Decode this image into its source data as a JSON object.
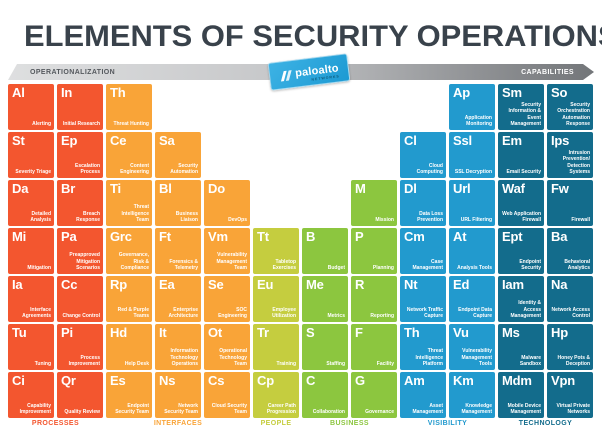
{
  "title": "ELEMENTS OF SECURITY OPERATIONS",
  "header_bar": {
    "left_label": "OPERATIONALIZATION",
    "right_label": "CAPABILITIES"
  },
  "logo": {
    "brand": "paloalto",
    "sub": "NETWORKS",
    "badge_color": "#29a9e0"
  },
  "categories": [
    {
      "id": "processes",
      "label": "PROCESSES",
      "color": "#f3562f",
      "col_start": 1,
      "col_span": 2
    },
    {
      "id": "interfaces",
      "label": "INTERFACES",
      "color": "#f9a438",
      "col_start": 3,
      "col_span": 3
    },
    {
      "id": "people",
      "label": "PEOPLE",
      "color": "#c5cd3f",
      "col_start": 6,
      "col_span": 1
    },
    {
      "id": "business",
      "label": "BUSINESS",
      "color": "#8cc63f",
      "col_start": 7,
      "col_span": 2
    },
    {
      "id": "visibility",
      "label": "VISIBILITY",
      "color": "#229ace",
      "col_start": 9,
      "col_span": 2
    },
    {
      "id": "technology",
      "label": "TECHNOLOGY",
      "color": "#136c8c",
      "col_start": 11,
      "col_span": 2
    }
  ],
  "elements": [
    {
      "symbol": "Al",
      "name": "Alerting",
      "row": 1,
      "col": 1,
      "category": "processes"
    },
    {
      "symbol": "In",
      "name": "Initial Research",
      "row": 1,
      "col": 2,
      "category": "processes"
    },
    {
      "symbol": "Th",
      "name": "Threat Hunting",
      "row": 1,
      "col": 3,
      "category": "interfaces"
    },
    {
      "symbol": "Ap",
      "name": "Application Monitoring",
      "row": 1,
      "col": 10,
      "category": "visibility"
    },
    {
      "symbol": "Sm",
      "name": "Security Information & Event Management",
      "row": 1,
      "col": 11,
      "category": "technology"
    },
    {
      "symbol": "So",
      "name": "Security Orchestration Automation Response",
      "row": 1,
      "col": 12,
      "category": "technology"
    },
    {
      "symbol": "St",
      "name": "Severity Triage",
      "row": 2,
      "col": 1,
      "category": "processes"
    },
    {
      "symbol": "Ep",
      "name": "Escalation Process",
      "row": 2,
      "col": 2,
      "category": "processes"
    },
    {
      "symbol": "Ce",
      "name": "Content Engineering",
      "row": 2,
      "col": 3,
      "category": "interfaces"
    },
    {
      "symbol": "Sa",
      "name": "Security Automation",
      "row": 2,
      "col": 4,
      "category": "interfaces"
    },
    {
      "symbol": "Cl",
      "name": "Cloud Computing",
      "row": 2,
      "col": 9,
      "category": "visibility"
    },
    {
      "symbol": "Ssl",
      "name": "SSL Decryption",
      "row": 2,
      "col": 10,
      "category": "visibility"
    },
    {
      "symbol": "Em",
      "name": "Email Security",
      "row": 2,
      "col": 11,
      "category": "technology"
    },
    {
      "symbol": "Ips",
      "name": "Intrusion Prevention/ Detection Systems",
      "row": 2,
      "col": 12,
      "category": "technology"
    },
    {
      "symbol": "Da",
      "name": "Detailed Analysis",
      "row": 3,
      "col": 1,
      "category": "processes"
    },
    {
      "symbol": "Br",
      "name": "Breach Response",
      "row": 3,
      "col": 2,
      "category": "processes"
    },
    {
      "symbol": "Ti",
      "name": "Threat Intelligence Team",
      "row": 3,
      "col": 3,
      "category": "interfaces"
    },
    {
      "symbol": "Bl",
      "name": "Business Liaison",
      "row": 3,
      "col": 4,
      "category": "interfaces"
    },
    {
      "symbol": "Do",
      "name": "DevOps",
      "row": 3,
      "col": 5,
      "category": "interfaces"
    },
    {
      "symbol": "M",
      "name": "Mission",
      "row": 3,
      "col": 8,
      "category": "business"
    },
    {
      "symbol": "Dl",
      "name": "Data Loss Prevention",
      "row": 3,
      "col": 9,
      "category": "visibility"
    },
    {
      "symbol": "Url",
      "name": "URL Filtering",
      "row": 3,
      "col": 10,
      "category": "visibility"
    },
    {
      "symbol": "Waf",
      "name": "Web Application Firewall",
      "row": 3,
      "col": 11,
      "category": "technology"
    },
    {
      "symbol": "Fw",
      "name": "Firewall",
      "row": 3,
      "col": 12,
      "category": "technology"
    },
    {
      "symbol": "Mi",
      "name": "Mitigation",
      "row": 4,
      "col": 1,
      "category": "processes"
    },
    {
      "symbol": "Pa",
      "name": "Preapproved Mitigation Scenarios",
      "row": 4,
      "col": 2,
      "category": "processes"
    },
    {
      "symbol": "Grc",
      "name": "Governance, Risk & Compliance",
      "row": 4,
      "col": 3,
      "category": "interfaces"
    },
    {
      "symbol": "Ft",
      "name": "Forensics & Telemetry",
      "row": 4,
      "col": 4,
      "category": "interfaces"
    },
    {
      "symbol": "Vm",
      "name": "Vulnerability Management Team",
      "row": 4,
      "col": 5,
      "category": "interfaces"
    },
    {
      "symbol": "Tt",
      "name": "Tabletop Exercises",
      "row": 4,
      "col": 6,
      "category": "people"
    },
    {
      "symbol": "B",
      "name": "Budget",
      "row": 4,
      "col": 7,
      "category": "business"
    },
    {
      "symbol": "P",
      "name": "Planning",
      "row": 4,
      "col": 8,
      "category": "business"
    },
    {
      "symbol": "Cm",
      "name": "Case Management",
      "row": 4,
      "col": 9,
      "category": "visibility"
    },
    {
      "symbol": "At",
      "name": "Analysis Tools",
      "row": 4,
      "col": 10,
      "category": "visibility"
    },
    {
      "symbol": "Ept",
      "name": "Endpoint Security",
      "row": 4,
      "col": 11,
      "category": "technology"
    },
    {
      "symbol": "Ba",
      "name": "Behavioral Analytics",
      "row": 4,
      "col": 12,
      "category": "technology"
    },
    {
      "symbol": "Ia",
      "name": "Interface Agreements",
      "row": 5,
      "col": 1,
      "category": "processes"
    },
    {
      "symbol": "Cc",
      "name": "Change Control",
      "row": 5,
      "col": 2,
      "category": "processes"
    },
    {
      "symbol": "Rp",
      "name": "Red & Purple Teams",
      "row": 5,
      "col": 3,
      "category": "interfaces"
    },
    {
      "symbol": "Ea",
      "name": "Enterprise Architecture",
      "row": 5,
      "col": 4,
      "category": "interfaces"
    },
    {
      "symbol": "Se",
      "name": "SOC Engineering",
      "row": 5,
      "col": 5,
      "category": "interfaces"
    },
    {
      "symbol": "Eu",
      "name": "Employee Utilization",
      "row": 5,
      "col": 6,
      "category": "people"
    },
    {
      "symbol": "Me",
      "name": "Metrics",
      "row": 5,
      "col": 7,
      "category": "business"
    },
    {
      "symbol": "R",
      "name": "Reporting",
      "row": 5,
      "col": 8,
      "category": "business"
    },
    {
      "symbol": "Nt",
      "name": "Network Traffic Capture",
      "row": 5,
      "col": 9,
      "category": "visibility"
    },
    {
      "symbol": "Ed",
      "name": "Endpoint Data Capture",
      "row": 5,
      "col": 10,
      "category": "visibility"
    },
    {
      "symbol": "Iam",
      "name": "Identity & Access Management",
      "row": 5,
      "col": 11,
      "category": "technology"
    },
    {
      "symbol": "Na",
      "name": "Network Access Control",
      "row": 5,
      "col": 12,
      "category": "technology"
    },
    {
      "symbol": "Tu",
      "name": "Tuning",
      "row": 6,
      "col": 1,
      "category": "processes"
    },
    {
      "symbol": "Pi",
      "name": "Process Improvement",
      "row": 6,
      "col": 2,
      "category": "processes"
    },
    {
      "symbol": "Hd",
      "name": "Help Desk",
      "row": 6,
      "col": 3,
      "category": "interfaces"
    },
    {
      "symbol": "It",
      "name": "Information Technology Operations",
      "row": 6,
      "col": 4,
      "category": "interfaces"
    },
    {
      "symbol": "Ot",
      "name": "Operational Technology Team",
      "row": 6,
      "col": 5,
      "category": "interfaces"
    },
    {
      "symbol": "Tr",
      "name": "Training",
      "row": 6,
      "col": 6,
      "category": "people"
    },
    {
      "symbol": "S",
      "name": "Staffing",
      "row": 6,
      "col": 7,
      "category": "business"
    },
    {
      "symbol": "F",
      "name": "Facility",
      "row": 6,
      "col": 8,
      "category": "business"
    },
    {
      "symbol": "Th",
      "name": "Threat Intelligence Platform",
      "row": 6,
      "col": 9,
      "category": "visibility"
    },
    {
      "symbol": "Vu",
      "name": "Vulnerability Management Tools",
      "row": 6,
      "col": 10,
      "category": "visibility"
    },
    {
      "symbol": "Ms",
      "name": "Malware Sandbox",
      "row": 6,
      "col": 11,
      "category": "technology"
    },
    {
      "symbol": "Hp",
      "name": "Honey Pots & Deception",
      "row": 6,
      "col": 12,
      "category": "technology"
    },
    {
      "symbol": "Ci",
      "name": "Capability Improvement",
      "row": 7,
      "col": 1,
      "category": "processes"
    },
    {
      "symbol": "Qr",
      "name": "Quality Review",
      "row": 7,
      "col": 2,
      "category": "processes"
    },
    {
      "symbol": "Es",
      "name": "Endpoint Security Team",
      "row": 7,
      "col": 3,
      "category": "interfaces"
    },
    {
      "symbol": "Ns",
      "name": "Network Security Team",
      "row": 7,
      "col": 4,
      "category": "interfaces"
    },
    {
      "symbol": "Cs",
      "name": "Cloud Security Team",
      "row": 7,
      "col": 5,
      "category": "interfaces"
    },
    {
      "symbol": "Cp",
      "name": "Career Path Progression",
      "row": 7,
      "col": 6,
      "category": "people"
    },
    {
      "symbol": "C",
      "name": "Collaboration",
      "row": 7,
      "col": 7,
      "category": "business"
    },
    {
      "symbol": "G",
      "name": "Governance",
      "row": 7,
      "col": 8,
      "category": "business"
    },
    {
      "symbol": "Am",
      "name": "Asset Management",
      "row": 7,
      "col": 9,
      "category": "visibility"
    },
    {
      "symbol": "Km",
      "name": "Knowledge Management",
      "row": 7,
      "col": 10,
      "category": "visibility"
    },
    {
      "symbol": "Mdm",
      "name": "Mobile Device Management",
      "row": 7,
      "col": 11,
      "category": "technology"
    },
    {
      "symbol": "Vpn",
      "name": "Virtual Private Networks",
      "row": 7,
      "col": 12,
      "category": "technology"
    }
  ]
}
